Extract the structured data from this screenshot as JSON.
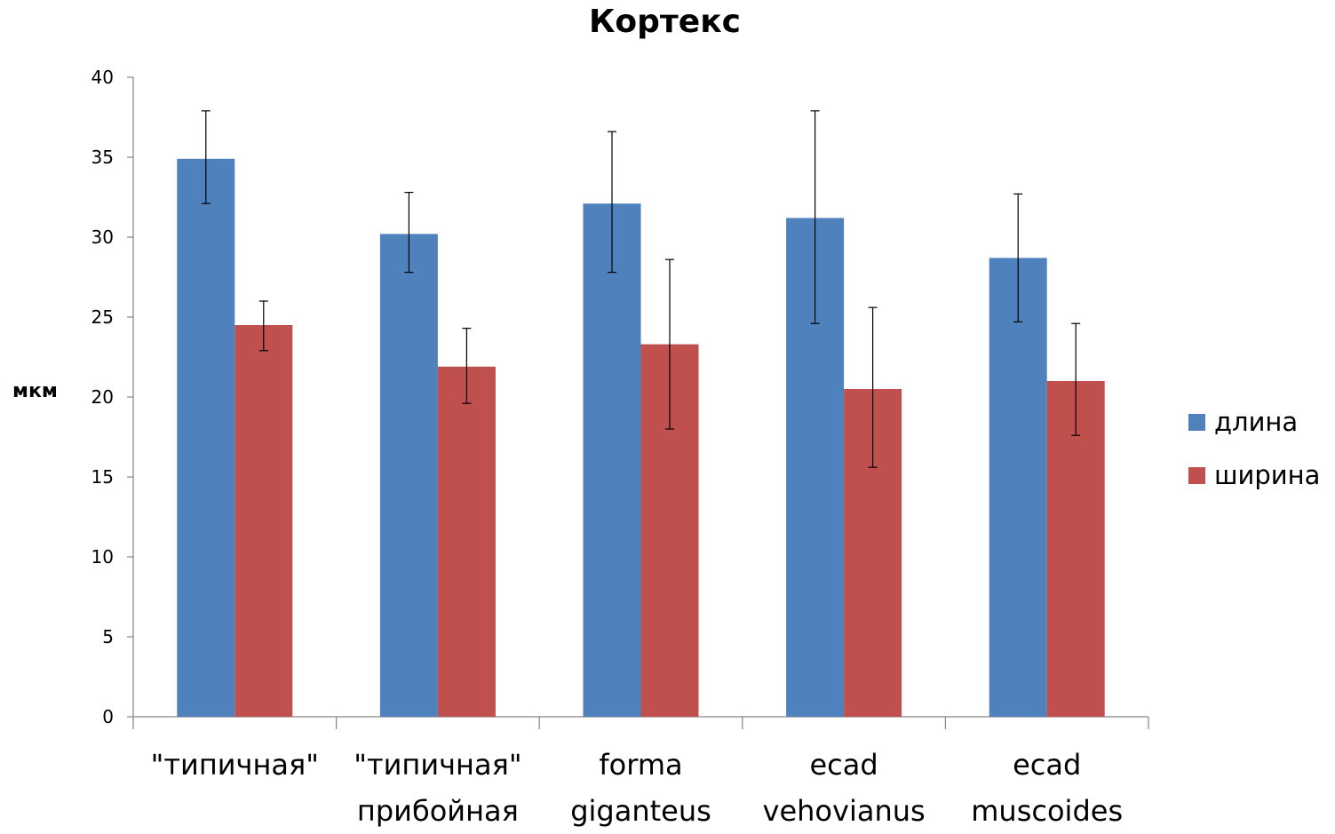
{
  "chart_data": {
    "type": "bar",
    "title": "Кортекс",
    "xlabel": "",
    "ylabel": "мкм",
    "ylim": [
      0,
      40
    ],
    "yticks": [
      0,
      5,
      10,
      15,
      20,
      25,
      30,
      35,
      40
    ],
    "categories": [
      [
        "\"типичная\""
      ],
      [
        "\"типичная\"",
        "прибойная"
      ],
      [
        "forma",
        "giganteus"
      ],
      [
        "ecad",
        "vehovianus"
      ],
      [
        "ecad",
        "muscoides"
      ]
    ],
    "series": [
      {
        "name": "длина",
        "color": "#4f81bd",
        "values": [
          34.9,
          30.2,
          32.1,
          31.2,
          28.7
        ],
        "err_high": [
          37.9,
          32.8,
          36.6,
          37.9,
          32.7
        ],
        "err_low": [
          32.1,
          27.8,
          27.8,
          24.6,
          24.7
        ]
      },
      {
        "name": "ширина",
        "color": "#c0504d",
        "values": [
          24.5,
          21.9,
          23.3,
          20.5,
          21.0
        ],
        "err_high": [
          26.0,
          24.3,
          28.6,
          25.6,
          24.6
        ],
        "err_low": [
          22.9,
          19.6,
          18.0,
          15.6,
          17.6
        ]
      }
    ],
    "legend": "right",
    "grid": false
  }
}
